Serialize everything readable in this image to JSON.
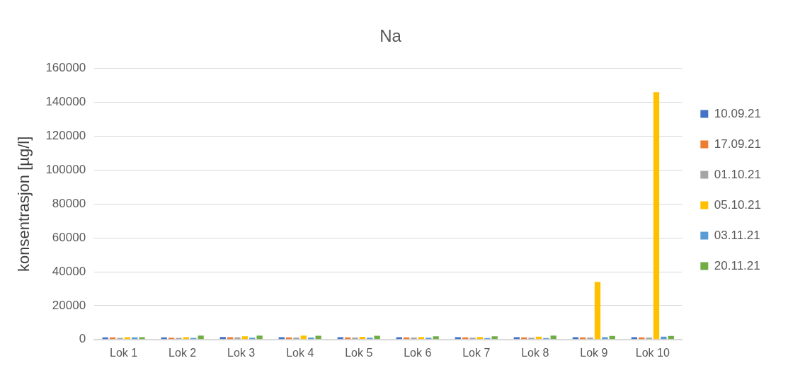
{
  "chart_data": {
    "type": "bar",
    "title": "Na",
    "ylabel": "konsentrasjon [µg/l]",
    "categories": [
      "Lok 1",
      "Lok 2",
      "Lok 3",
      "Lok 4",
      "Lok 5",
      "Lok 6",
      "Lok 7",
      "Lok 8",
      "Lok 9",
      "Lok 10"
    ],
    "series": [
      {
        "name": "10.09.21",
        "color": "#4472c4",
        "values": [
          1300,
          1300,
          1500,
          1400,
          1400,
          1400,
          1400,
          1400,
          1400,
          1400
        ]
      },
      {
        "name": "17.09.21",
        "color": "#ed7d31",
        "values": [
          1300,
          1100,
          1400,
          1300,
          1300,
          1300,
          1300,
          1300,
          1300,
          1300
        ]
      },
      {
        "name": "01.10.21",
        "color": "#a5a5a5",
        "values": [
          1000,
          1000,
          1300,
          1200,
          1200,
          1200,
          1100,
          1100,
          1200,
          1200
        ]
      },
      {
        "name": "05.10.21",
        "color": "#ffc000",
        "values": [
          1400,
          1400,
          1900,
          2300,
          1600,
          1500,
          1500,
          1700,
          34000,
          146000
        ]
      },
      {
        "name": "03.11.21",
        "color": "#5b9bd5",
        "values": [
          1300,
          1000,
          1100,
          1200,
          1100,
          1100,
          900,
          900,
          1400,
          1700
        ]
      },
      {
        "name": "20.11.21",
        "color": "#70ad47",
        "values": [
          1400,
          2300,
          2300,
          2200,
          2200,
          1900,
          1900,
          2300,
          2100,
          2100
        ]
      }
    ],
    "ylim": [
      0,
      160000
    ],
    "yticks": [
      0,
      20000,
      40000,
      60000,
      80000,
      100000,
      120000,
      140000,
      160000
    ],
    "grid": "y",
    "legend": "right"
  }
}
